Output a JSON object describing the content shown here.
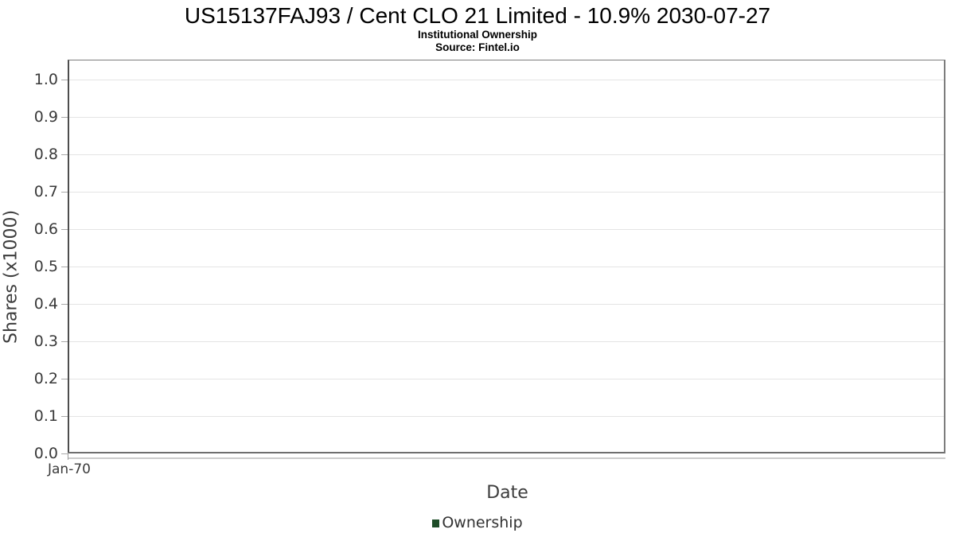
{
  "header": {
    "title": "US15137FAJ93 / Cent CLO 21 Limited - 10.9% 2030-07-27",
    "subtitle": "Institutional Ownership",
    "source": "Source: Fintel.io"
  },
  "chart_data": {
    "type": "line",
    "title": "US15137FAJ93 / Cent CLO 21 Limited - 10.9% 2030-07-27",
    "subtitle": "Institutional Ownership",
    "source": "Source: Fintel.io",
    "xlabel": "Date",
    "ylabel": "Shares (x1000)",
    "x_ticks": [
      "Jan-70"
    ],
    "y_ticks": [
      0.0,
      0.1,
      0.2,
      0.3,
      0.4,
      0.5,
      0.6,
      0.7,
      0.8,
      0.9,
      1.0
    ],
    "ylim": [
      0,
      1.053
    ],
    "grid": "horizontal-only",
    "legend_position": "bottom-center",
    "series": [
      {
        "name": "Ownership",
        "color": "#1e4d28",
        "x": [],
        "y": [],
        "note_visible_points": 0
      }
    ]
  },
  "legend": {
    "items": [
      {
        "label": "Ownership",
        "color": "#1e4d28"
      }
    ]
  },
  "colors": {
    "plot_border": "#7d7d7d",
    "gridline": "#e4e4e4",
    "axis_text": "#3a3a3a",
    "title_text": "#000000",
    "background": "#ffffff"
  }
}
